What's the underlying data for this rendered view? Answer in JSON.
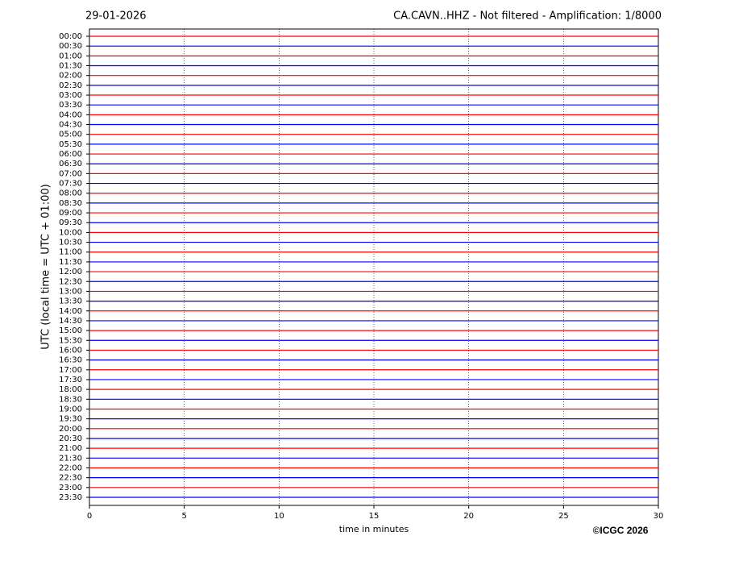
{
  "chart_data": {
    "type": "helicorder",
    "title": "CA.CAVN..HHZ - Not filtered - Amplification: 1/8000",
    "date": "29-01-2026",
    "y_label": "UTC (local time = UTC + 01:00)",
    "x_label": "time in minutes",
    "copyright": "©ICGC 2026",
    "categories": [
      "00:00",
      "00:30",
      "01:00",
      "01:30",
      "02:00",
      "02:30",
      "03:00",
      "03:30",
      "04:00",
      "04:30",
      "05:00",
      "05:30",
      "06:00",
      "06:30",
      "07:00",
      "07:30",
      "08:00",
      "08:30",
      "09:00",
      "09:30",
      "10:00",
      "10:30",
      "11:00",
      "11:30",
      "12:00",
      "12:30",
      "13:00",
      "13:30",
      "14:00",
      "14:30",
      "15:00",
      "15:30",
      "16:00",
      "16:30",
      "17:00",
      "17:30",
      "18:00",
      "18:30",
      "19:00",
      "19:30",
      "20:00",
      "20:30",
      "21:00",
      "21:30",
      "22:00",
      "22:30",
      "23:00",
      "23:30"
    ],
    "colors": [
      "#ff0000",
      "#0000ff"
    ],
    "xlim": [
      0,
      30
    ],
    "xticks": [
      0,
      5,
      10,
      15,
      20,
      25,
      30
    ],
    "grid": true
  }
}
